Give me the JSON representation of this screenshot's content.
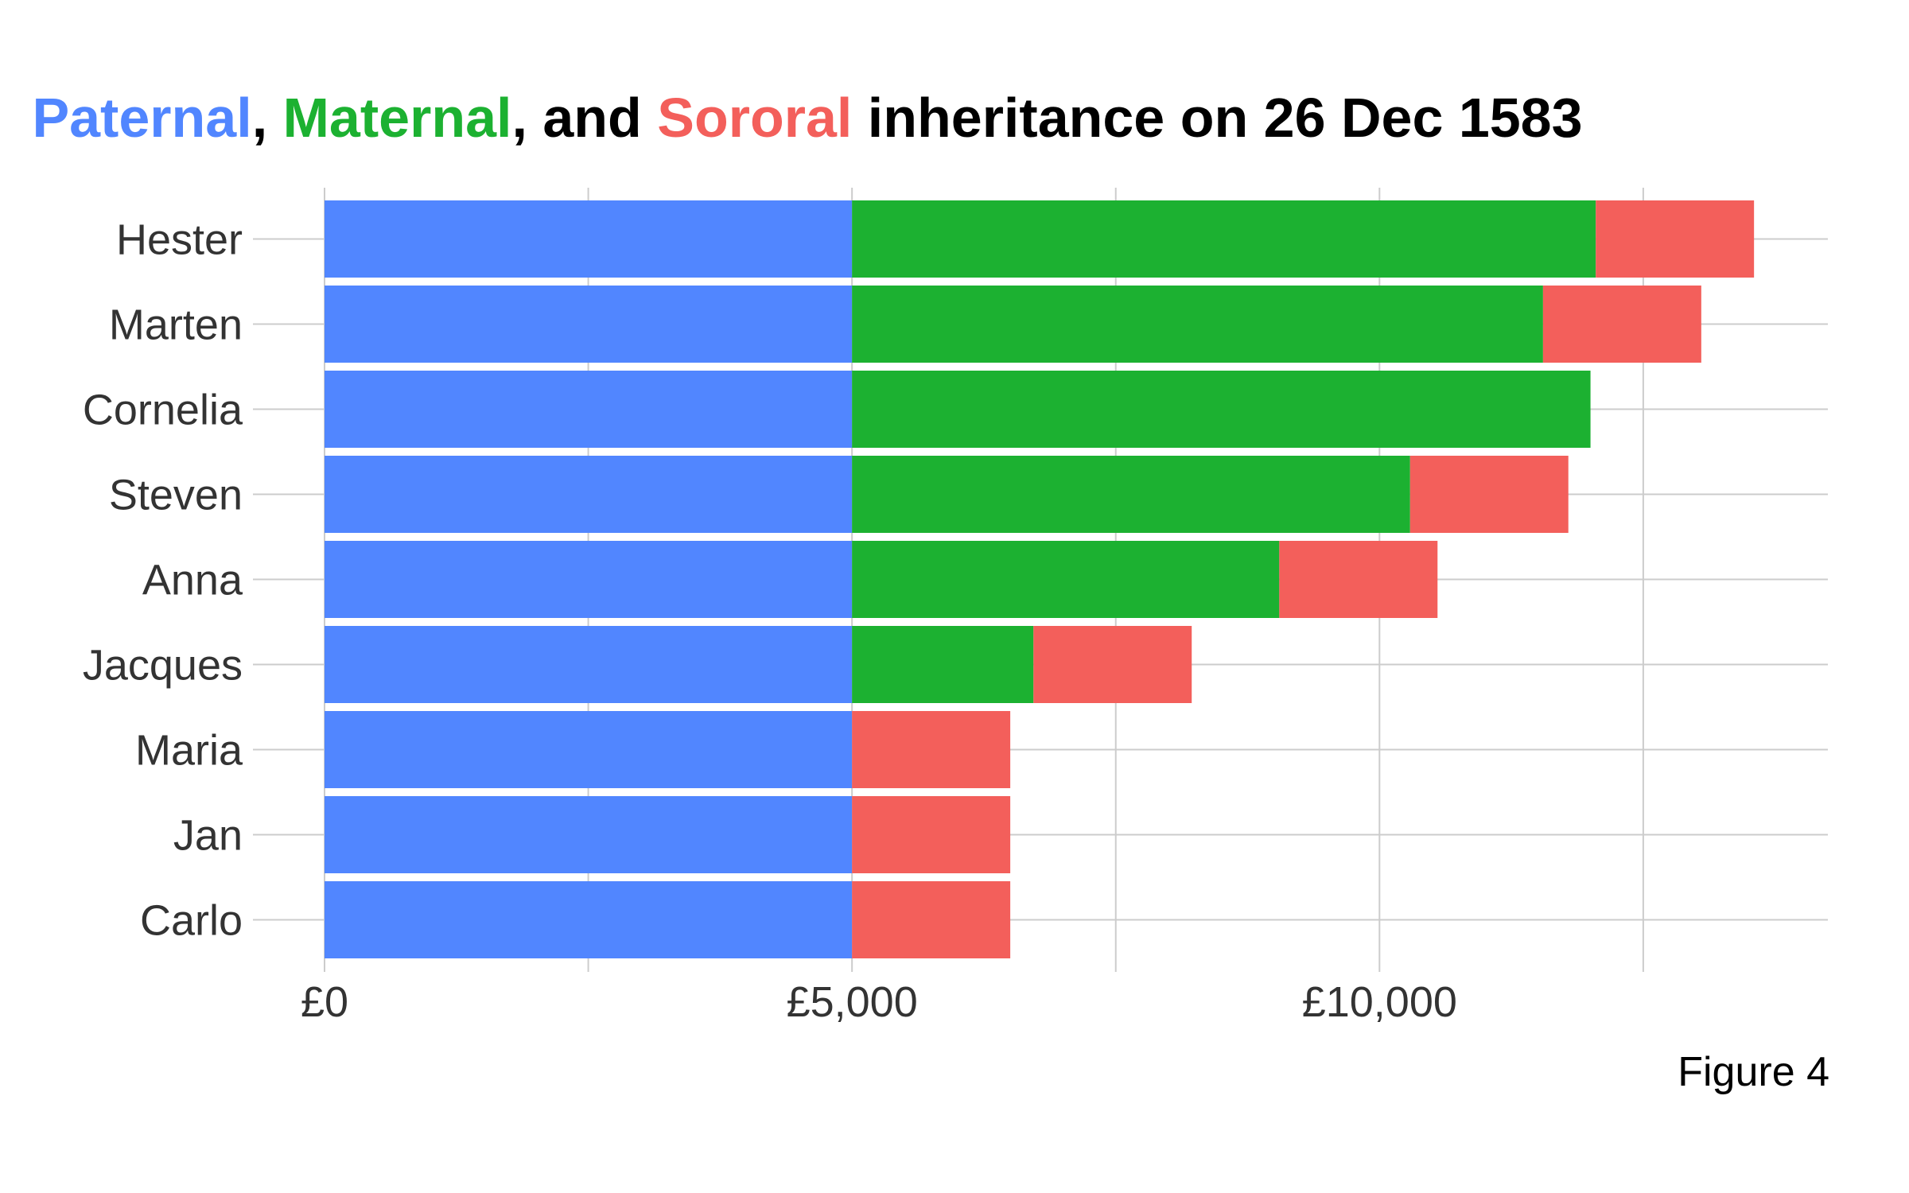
{
  "chart_data": {
    "type": "bar",
    "orientation": "horizontal",
    "stacked": true,
    "title": {
      "parts": [
        {
          "text": "Paternal",
          "color": "#5186ff"
        },
        {
          "text": ", ",
          "color": "#000000"
        },
        {
          "text": "Maternal",
          "color": "#1cb131"
        },
        {
          "text": ", and ",
          "color": "#000000"
        },
        {
          "text": "Sororal",
          "color": "#f35f5b"
        },
        {
          "text": " inheritance on 26 Dec 1583",
          "color": "#000000"
        }
      ]
    },
    "caption": "Figure 4",
    "xlim": [
      0,
      14250
    ],
    "xticks": [
      0,
      5000,
      10000
    ],
    "xtick_labels": [
      "£0",
      "£5,000",
      "£10,000"
    ],
    "minor_xticks": [
      2500,
      7500,
      12500
    ],
    "grid": true,
    "categories": [
      "Hester",
      "Marten",
      "Cornelia",
      "Steven",
      "Anna",
      "Jacques",
      "Maria",
      "Jan",
      "Carlo"
    ],
    "series": [
      {
        "name": "Paternal",
        "color": "#5186ff",
        "values": [
          5000,
          5000,
          5000,
          5000,
          5000,
          5000,
          5000,
          5000,
          5000
        ]
      },
      {
        "name": "Maternal",
        "color": "#1cb131",
        "values": [
          7050,
          6550,
          7000,
          5290,
          4050,
          1720,
          0,
          0,
          0
        ]
      },
      {
        "name": "Sororal",
        "color": "#f35f5b",
        "values": [
          1500,
          1500,
          0,
          1500,
          1500,
          1500,
          1500,
          1500,
          1500
        ]
      }
    ]
  }
}
